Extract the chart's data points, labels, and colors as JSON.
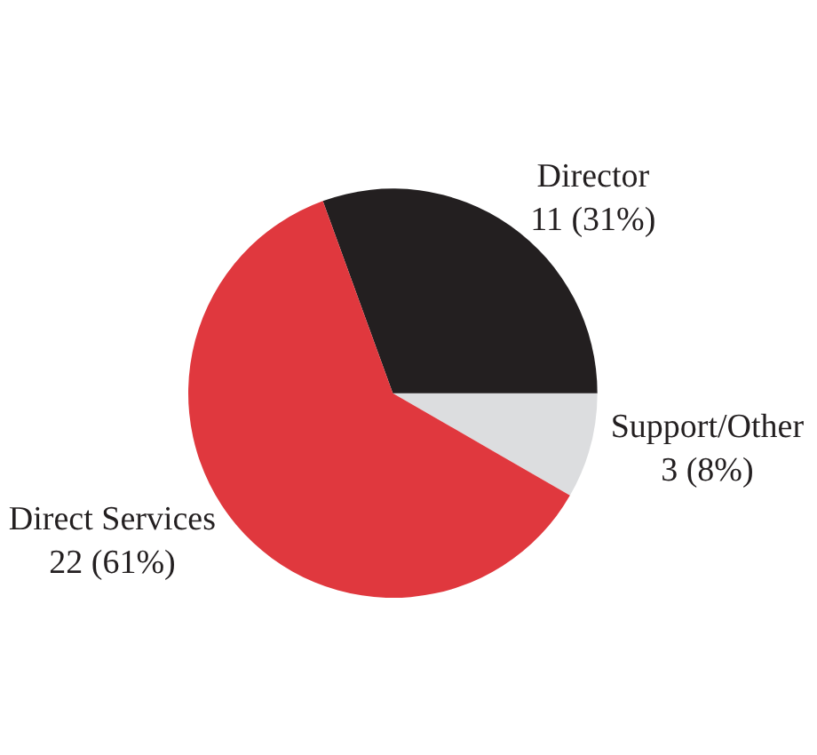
{
  "chart_data": {
    "type": "pie",
    "categories": [
      "Support/Other",
      "Director",
      "Direct Services"
    ],
    "values": [
      3,
      11,
      22
    ],
    "value_labels": [
      "3 (8%)",
      "11 (31%)",
      "22 (61%)"
    ],
    "colors": [
      "#dcdddf",
      "#231f20",
      "#e0383e"
    ],
    "legend": false
  }
}
